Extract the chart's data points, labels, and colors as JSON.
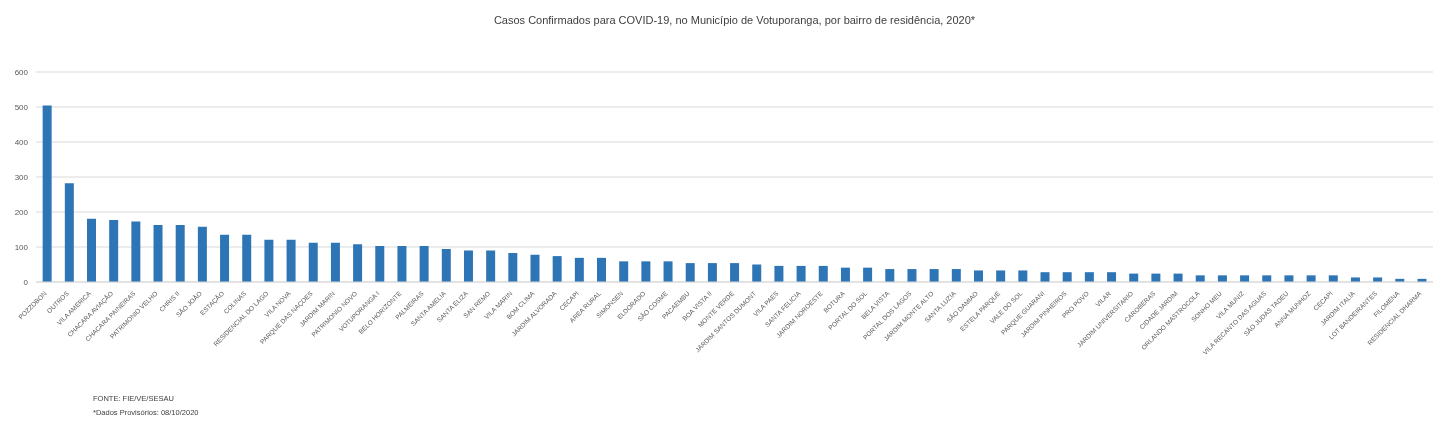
{
  "chart_data": {
    "type": "bar",
    "title": "Casos Confirmados para COVID-19,  no Município de Votuporanga, por bairro de residência, 2020*",
    "categories": [
      "POZZOBON",
      "OUTROS",
      "VILA AMERICA",
      "CHACARA AVIAÇÃO",
      "CHACARA PAINEIRAS",
      "PATRIMONIO VELHO",
      "CHRIS II",
      "SÃO JOÃO",
      "ESTAÇÃO",
      "COLINAS",
      "RESIDENCIAL DO LAGO",
      "VILA NOVA",
      "PARQUE DAS NAÇOES",
      "JARDIM MARIN",
      "PATRIMONIO NOVO",
      "VOTUPORANGA I",
      "BELO HORIZONTE",
      "PALMEIRAS",
      "SANTA AMELIA",
      "SANTA ELIZA",
      "SAN REMO",
      "VILA MARIN",
      "BOM CLIMA",
      "JARDIM ALVORADA",
      "CECAPI",
      "AREA RURAL",
      "SIMONSEN",
      "ELDORADO",
      "SÃO COSME",
      "PACAEMBU",
      "BOA VISTA II",
      "MONTE VERDE",
      "JARDIM SANTOS DUMONT",
      "VILA PAES",
      "SANTA FELICIA",
      "JARDIM NOROESTE",
      "BOTURA",
      "PORTAL DO SOL",
      "BELA VISTA",
      "PORTAL DOS LAGOS",
      "JARDIM MONTE ALTO",
      "SANTA LUZIA",
      "SÃO DAMIAO",
      "ESTELA PARQUE",
      "VALE DO SOL",
      "PARQUE GUARANI",
      "JARDIM PINHEIROS",
      "PRO POVO",
      "VILAR",
      "JARDIM UNIVERSITARIO",
      "CAROBERAS",
      "CIDADE JARDIM",
      "ORLANDO MASTROCOLA",
      "SONHO MEU",
      "VILA MUNIZ",
      "VILA RECANTO DAS AGUAS",
      "SÃO JUDAS TADEU",
      "ANNA MUNHOZ",
      "CECAPI",
      "JARDIM ITALIA",
      "LOT BANDEIRANTES",
      "FILOMENA",
      "RESIDENCIAL DHARMA"
    ],
    "values": [
      504,
      282,
      181,
      177,
      173,
      163,
      163,
      158,
      135,
      135,
      121,
      121,
      112,
      112,
      108,
      103,
      103,
      103,
      94,
      90,
      90,
      83,
      78,
      74,
      69,
      69,
      59,
      59,
      59,
      54,
      54,
      54,
      50,
      46,
      46,
      46,
      41,
      41,
      37,
      37,
      37,
      37,
      33,
      33,
      33,
      28,
      28,
      28,
      28,
      24,
      24,
      24,
      19,
      19,
      19,
      19,
      19,
      19,
      19,
      13,
      13,
      9,
      9
    ],
    "color": "#2e75b6",
    "ylim": [
      0,
      600
    ],
    "yticks": [
      0,
      100,
      200,
      300,
      400,
      500,
      600
    ],
    "grid": "y",
    "annotations": [
      "FONTE: FIE/VE/SESAU",
      "*Dados Provisórios: 08/10/2020"
    ]
  }
}
